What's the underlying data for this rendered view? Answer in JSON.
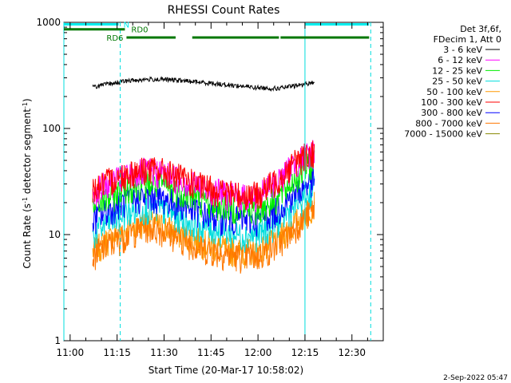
{
  "chart_data": {
    "type": "line",
    "title": "RHESSI Count Rates",
    "xlabel": "Start Time (20-Mar-17 10:58:02)",
    "ylabel_prefix": "Count Rate (s",
    "ylabel_sup1": "-1",
    "ylabel_mid": " detector segment",
    "ylabel_sup2": "-1",
    "ylabel_suffix": ")",
    "y_scale": "log",
    "ylim": [
      1,
      1000
    ],
    "xlim_minutes": [
      10.9667,
      12.6667
    ],
    "x_ticks": [
      {
        "value": 11.0,
        "label": "11:00"
      },
      {
        "value": 11.25,
        "label": "11:15"
      },
      {
        "value": 11.5,
        "label": "11:30"
      },
      {
        "value": 11.75,
        "label": "11:45"
      },
      {
        "value": 12.0,
        "label": "12:00"
      },
      {
        "value": 12.25,
        "label": "12:15"
      },
      {
        "value": 12.5,
        "label": "12:30"
      }
    ],
    "y_ticks": [
      {
        "value": 1,
        "label": "1"
      },
      {
        "value": 10,
        "label": "10"
      },
      {
        "value": 100,
        "label": "100"
      },
      {
        "value": 1000,
        "label": "1000"
      }
    ],
    "legend_header": [
      "Det 3f,6f,",
      "FDecim 1, Att 0"
    ],
    "series": [
      {
        "name": "3 - 6 keV",
        "color": "#000000",
        "x": [
          11.12,
          11.2,
          11.3,
          11.4,
          11.5,
          11.6,
          11.7,
          11.8,
          11.9,
          12.0,
          12.1,
          12.2,
          12.3
        ],
        "y": [
          245,
          262,
          280,
          290,
          290,
          282,
          272,
          262,
          252,
          242,
          238,
          252,
          272
        ]
      },
      {
        "name": "6 - 12 keV",
        "color": "#ff00ff",
        "x": [
          11.12,
          11.2,
          11.3,
          11.4,
          11.5,
          11.6,
          11.7,
          11.8,
          11.9,
          12.0,
          12.1,
          12.2,
          12.3
        ],
        "y": [
          26,
          30,
          36,
          40,
          38,
          33,
          28,
          25,
          23,
          23,
          32,
          48,
          63
        ]
      },
      {
        "name": "12 - 25 keV",
        "color": "#00ee00",
        "x": [
          11.12,
          11.2,
          11.3,
          11.4,
          11.5,
          11.6,
          11.7,
          11.8,
          11.9,
          12.0,
          12.1,
          12.2,
          12.3
        ],
        "y": [
          18,
          22,
          28,
          31,
          29,
          25,
          21,
          19,
          18,
          17,
          22,
          34,
          50
        ]
      },
      {
        "name": "25 - 50 keV",
        "color": "#00dddd",
        "x": [
          11.12,
          11.2,
          11.3,
          11.4,
          11.5,
          11.6,
          11.7,
          11.8,
          11.9,
          12.0,
          12.1,
          12.2,
          12.3
        ],
        "y": [
          10,
          13,
          16,
          18,
          17,
          14,
          12,
          11,
          10,
          10,
          13,
          19,
          28
        ]
      },
      {
        "name": "50 - 100 keV",
        "color": "#ff9900",
        "x": [
          11.12,
          11.2,
          11.3,
          11.4,
          11.5,
          11.6,
          11.7,
          11.8,
          11.9,
          12.0,
          12.1,
          12.2,
          12.3
        ],
        "y": [
          7,
          9,
          11,
          13,
          12,
          10,
          8.5,
          7.5,
          7,
          7,
          9,
          13,
          20
        ]
      },
      {
        "name": "100 - 300 keV",
        "color": "#ff0000",
        "x": [
          11.12,
          11.2,
          11.3,
          11.4,
          11.5,
          11.6,
          11.7,
          11.8,
          11.9,
          12.0,
          12.1,
          12.2,
          12.3
        ],
        "y": [
          27,
          32,
          38,
          42,
          40,
          34,
          29,
          26,
          24,
          24,
          33,
          50,
          62
        ]
      },
      {
        "name": "300 - 800 keV",
        "color": "#0000ff",
        "x": [
          11.12,
          11.2,
          11.3,
          11.4,
          11.5,
          11.6,
          11.7,
          11.8,
          11.9,
          12.0,
          12.1,
          12.2,
          12.3
        ],
        "y": [
          14,
          17,
          21,
          23,
          22,
          19,
          16,
          14.5,
          14,
          14,
          17,
          25,
          34
        ]
      },
      {
        "name": "800 - 7000 keV",
        "color": "#ff7700",
        "x": [
          11.12,
          11.2,
          11.3,
          11.4,
          11.5,
          11.6,
          11.7,
          11.8,
          11.9,
          12.0,
          12.1,
          12.2,
          12.3
        ],
        "y": [
          6.5,
          8,
          10,
          12,
          11,
          9,
          7.5,
          6.8,
          6.3,
          6.3,
          8,
          12,
          18
        ]
      },
      {
        "name": "7000 - 15000 keV",
        "color": "#888800",
        "x": [],
        "y": []
      }
    ],
    "vertical_lines": [
      {
        "x": 10.9667,
        "style": "solid"
      },
      {
        "x": 11.2667,
        "style": "dashed"
      },
      {
        "x": 12.25,
        "style": "solid"
      },
      {
        "x": 12.6,
        "style": "dashed"
      }
    ],
    "segments": [
      {
        "label": "N",
        "color": "#00eeee",
        "y": 958,
        "ranges": [
          [
            10.9667,
            11.2667
          ]
        ]
      },
      {
        "label": "",
        "color": "#00eeee",
        "y": 958,
        "ranges": [
          [
            12.25,
            12.6
          ]
        ]
      },
      {
        "label": "RD0",
        "color": "#007700",
        "y": 860,
        "ranges": [
          [
            10.9667,
            11.3
          ]
        ]
      },
      {
        "label": "RD6",
        "color": "#007700",
        "y": 720,
        "ranges": [
          [
            11.3,
            11.57
          ],
          [
            11.65,
            12.12
          ],
          [
            12.12,
            12.6
          ]
        ]
      }
    ],
    "timestamp": "2-Sep-2022 05:47"
  }
}
